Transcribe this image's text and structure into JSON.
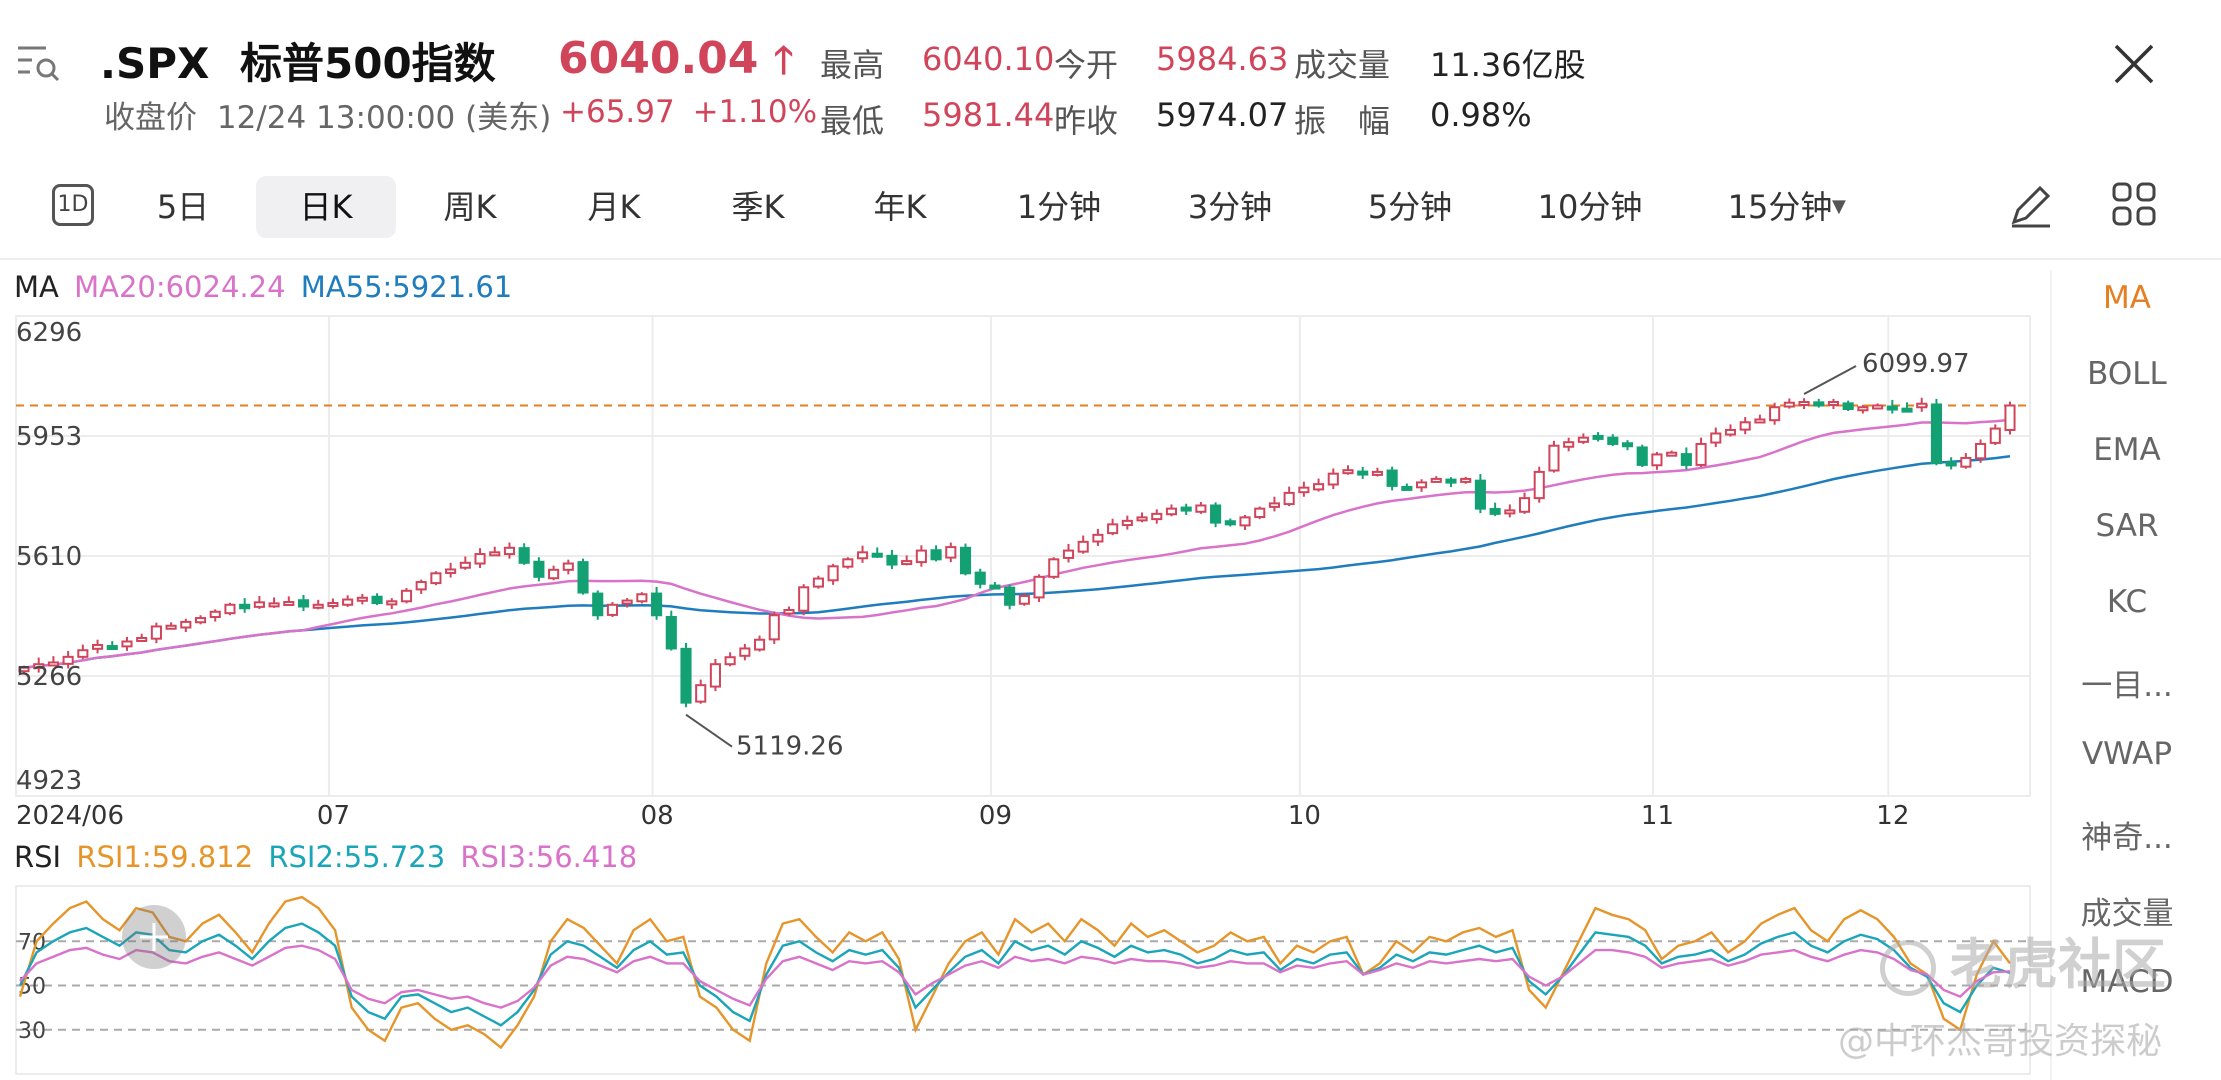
{
  "header": {
    "symbol": ".SPX",
    "name": "标普500指数",
    "price": "6040.04",
    "change": "+65.97",
    "change_pct": "+1.10%",
    "close_label": "收盘价",
    "datetime": "12/24 13:00:00 (美东)",
    "stats": [
      {
        "label": "最高",
        "value": "6040.10",
        "color": "red"
      },
      {
        "label": "今开",
        "value": "5984.63",
        "color": "red"
      },
      {
        "label": "成交量",
        "value": "11.36亿股",
        "color": "dark"
      },
      {
        "label": "最低",
        "value": "5981.44",
        "color": "red"
      },
      {
        "label": "昨收",
        "value": "5974.07",
        "color": "dark"
      },
      {
        "label": "振　幅",
        "value": "0.98%",
        "color": "dark"
      }
    ]
  },
  "tabs": {
    "icon_label": "1D",
    "items": [
      "5日",
      "日K",
      "周K",
      "月K",
      "季K",
      "年K",
      "1分钟",
      "3分钟",
      "5分钟",
      "10分钟",
      "15分钟"
    ],
    "active": "日K"
  },
  "indicators": {
    "ma_label": "MA",
    "ma20": "MA20:6024.24",
    "ma55": "MA55:5921.61",
    "rsi_label": "RSI",
    "rsi1": "RSI1:59.812",
    "rsi2": "RSI2:55.723",
    "rsi3": "RSI3:56.418"
  },
  "side_menu": [
    "MA",
    "BOLL",
    "EMA",
    "SAR",
    "KC",
    "一目...",
    "VWAP",
    "神奇...",
    "成交量",
    "MACD"
  ],
  "watermark": {
    "brand": "老虎社区",
    "author": "@中环杰哥投资探秘"
  },
  "colors": {
    "up": "#d1455b",
    "down": "#13a173",
    "ma20": "#d873c9",
    "ma55": "#1f7dbe",
    "rsi1": "#e6952a",
    "rsi2": "#1aa5b8",
    "rsi3": "#d873c9",
    "accent": "#e67e22"
  },
  "chart_data": {
    "type": "candlestick",
    "y_ticks": [
      "6296",
      "5953",
      "5610",
      "5266",
      "4923"
    ],
    "ylim": [
      4923,
      6296
    ],
    "x_labels": [
      "2024/06",
      "07",
      "08",
      "09",
      "10",
      "11",
      "12"
    ],
    "annotations": [
      {
        "text": "6099.97",
        "kind": "high"
      },
      {
        "text": "5119.26",
        "kind": "low"
      }
    ],
    "reference_price": 6040.04,
    "closes": [
      5290,
      5300,
      5305,
      5321,
      5340,
      5355,
      5350,
      5365,
      5375,
      5408,
      5410,
      5421,
      5432,
      5450,
      5470,
      5460,
      5477,
      5474,
      5478,
      5465,
      5470,
      5475,
      5485,
      5490,
      5475,
      5480,
      5510,
      5535,
      5560,
      5571,
      5590,
      5615,
      5620,
      5633,
      5590,
      5550,
      5570,
      5588,
      5505,
      5440,
      5470,
      5482,
      5500,
      5440,
      5345,
      5190,
      5240,
      5300,
      5320,
      5345,
      5370,
      5440,
      5455,
      5520,
      5545,
      5580,
      5600,
      5620,
      5610,
      5585,
      5595,
      5625,
      5600,
      5635,
      5560,
      5530,
      5520,
      5470,
      5495,
      5550,
      5600,
      5625,
      5650,
      5670,
      5700,
      5710,
      5720,
      5730,
      5745,
      5740,
      5754,
      5705,
      5700,
      5720,
      5745,
      5760,
      5790,
      5805,
      5815,
      5845,
      5855,
      5843,
      5850,
      5810,
      5805,
      5820,
      5830,
      5820,
      5830,
      5745,
      5730,
      5740,
      5775,
      5850,
      5925,
      5935,
      5948,
      5950,
      5930,
      5925,
      5870,
      5900,
      5905,
      5870,
      5930,
      5960,
      5970,
      5992,
      6000,
      6035,
      6048,
      6050,
      6040,
      6050,
      6030,
      6035,
      6040,
      6030,
      6030,
      6045,
      5875,
      5870,
      5890,
      5930,
      5974,
      6040
    ],
    "rsi": {
      "series": [
        {
          "name": "RSI1",
          "values": [
            45,
            70,
            78,
            85,
            88,
            80,
            75,
            85,
            83,
            72,
            70,
            78,
            82,
            74,
            65,
            78,
            88,
            90,
            85,
            75,
            40,
            30,
            25,
            40,
            42,
            35,
            30,
            32,
            28,
            22,
            32,
            45,
            70,
            80,
            76,
            68,
            60,
            75,
            80,
            70,
            72,
            45,
            40,
            30,
            25,
            60,
            78,
            80,
            72,
            65,
            74,
            70,
            74,
            62,
            30,
            45,
            60,
            70,
            74,
            64,
            80,
            74,
            78,
            70,
            80,
            75,
            68,
            78,
            72,
            75,
            70,
            65,
            68,
            74,
            70,
            72,
            60,
            68,
            65,
            70,
            72,
            55,
            60,
            70,
            65,
            72,
            70,
            74,
            76,
            72,
            75,
            48,
            40,
            55,
            70,
            85,
            82,
            80,
            75,
            62,
            68,
            70,
            74,
            65,
            70,
            78,
            82,
            85,
            75,
            70,
            80,
            84,
            80,
            72,
            60,
            55,
            35,
            30,
            55,
            70,
            60
          ]
        },
        {
          "name": "RSI2",
          "values": [
            50,
            65,
            70,
            74,
            76,
            72,
            68,
            74,
            73,
            66,
            65,
            70,
            73,
            68,
            62,
            70,
            76,
            78,
            74,
            68,
            45,
            38,
            35,
            45,
            46,
            42,
            38,
            40,
            36,
            32,
            38,
            48,
            64,
            70,
            68,
            63,
            58,
            66,
            70,
            64,
            65,
            50,
            45,
            38,
            34,
            55,
            68,
            70,
            65,
            61,
            66,
            64,
            66,
            58,
            40,
            48,
            56,
            63,
            66,
            60,
            70,
            66,
            68,
            64,
            70,
            67,
            63,
            68,
            65,
            66,
            64,
            60,
            62,
            66,
            64,
            65,
            57,
            62,
            60,
            64,
            65,
            55,
            58,
            64,
            61,
            65,
            64,
            66,
            68,
            65,
            67,
            52,
            46,
            54,
            64,
            74,
            73,
            72,
            68,
            60,
            63,
            64,
            66,
            61,
            64,
            69,
            72,
            74,
            68,
            65,
            70,
            73,
            71,
            66,
            58,
            54,
            42,
            38,
            50,
            58,
            55.723
          ]
        },
        {
          "name": "RSI3",
          "values": [
            52,
            60,
            63,
            66,
            67,
            64,
            62,
            66,
            65,
            61,
            60,
            63,
            65,
            62,
            59,
            63,
            67,
            68,
            66,
            62,
            48,
            44,
            42,
            47,
            48,
            46,
            44,
            45,
            42,
            40,
            43,
            49,
            59,
            63,
            62,
            59,
            56,
            61,
            63,
            60,
            60,
            52,
            48,
            44,
            41,
            53,
            61,
            63,
            60,
            57,
            61,
            60,
            61,
            56,
            46,
            51,
            55,
            59,
            61,
            58,
            63,
            61,
            62,
            60,
            63,
            62,
            60,
            62,
            61,
            61,
            60,
            58,
            59,
            61,
            60,
            60,
            56,
            59,
            58,
            60,
            61,
            55,
            57,
            60,
            58,
            61,
            60,
            61,
            62,
            61,
            62,
            54,
            50,
            54,
            60,
            66,
            66,
            65,
            63,
            58,
            60,
            61,
            62,
            59,
            61,
            64,
            65,
            66,
            63,
            61,
            64,
            66,
            65,
            62,
            57,
            55,
            48,
            45,
            52,
            56,
            56.418
          ]
        }
      ],
      "levels": [
        70,
        50,
        30
      ]
    }
  }
}
